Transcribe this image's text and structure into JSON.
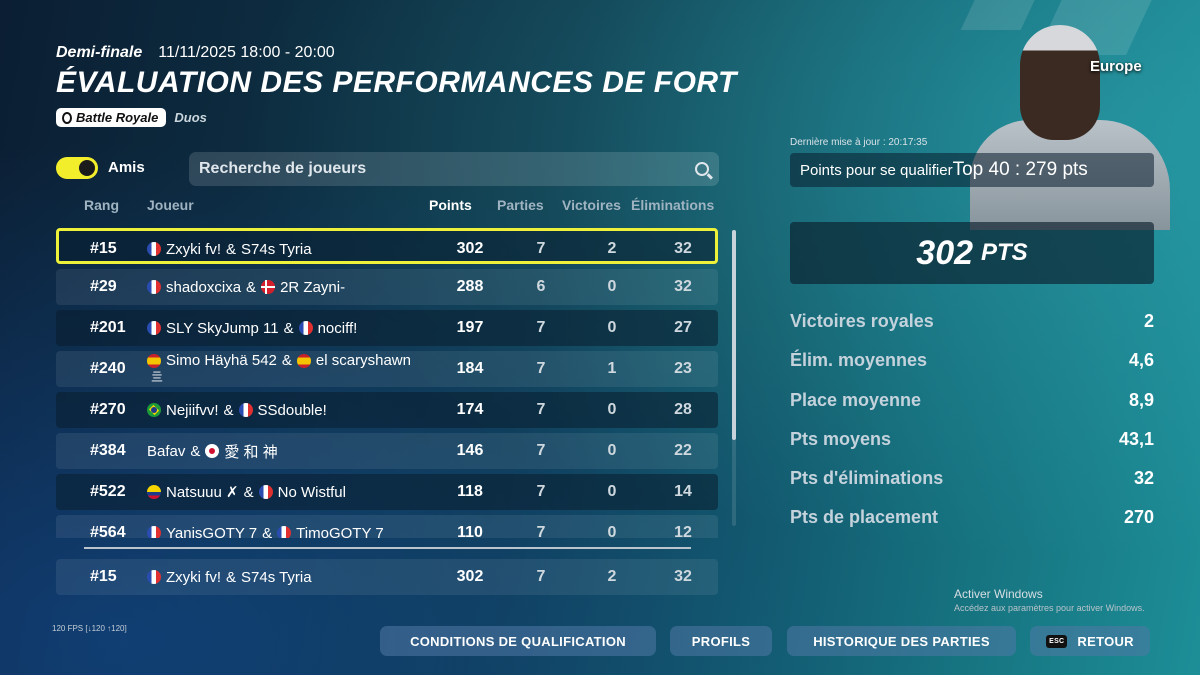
{
  "header": {
    "stage": "Demi-finale",
    "datetime": "11/11/2025 18:00 - 20:00",
    "title": "ÉVALUATION DES PERFORMANCES DE FORT",
    "mode": "Battle Royale",
    "team_size": "Duos",
    "region": "Europe"
  },
  "filters": {
    "friends_label": "Amis",
    "friends_on": true,
    "search_placeholder": "Recherche de joueurs"
  },
  "columns": {
    "rank": "Rang",
    "player": "Joueur",
    "points": "Points",
    "matches": "Parties",
    "wins": "Victoires",
    "elims": "Éliminations"
  },
  "rows": [
    {
      "rank": "#15",
      "p1_flag": "fr",
      "p1": "Zxyki fv!",
      "sep": "&",
      "p2_flag": "",
      "p2": "S74s Tyria",
      "points": "302",
      "matches": "7",
      "wins": "2",
      "elims": "32",
      "selected": true
    },
    {
      "rank": "#29",
      "p1_flag": "fr",
      "p1": "shadoxcixa",
      "sep": "&",
      "p2_flag": "dk",
      "p2": "2R Zayni-",
      "points": "288",
      "matches": "6",
      "wins": "0",
      "elims": "32"
    },
    {
      "rank": "#201",
      "p1_flag": "fr",
      "p1": "SLY SkyJump 11",
      "sep": "&",
      "p2_flag": "fr",
      "p2": "nociff!",
      "points": "197",
      "matches": "7",
      "wins": "0",
      "elims": "27"
    },
    {
      "rank": "#240",
      "p1_flag": "es",
      "p1": "Simo Häyhä 542",
      "sep": "&",
      "p2_flag": "es",
      "p2": "el scaryshawn",
      "extra": "亖",
      "points": "184",
      "matches": "7",
      "wins": "1",
      "elims": "23"
    },
    {
      "rank": "#270",
      "p1_flag": "br",
      "p1": "Nejiifvv!",
      "sep": "&",
      "p2_flag": "fr",
      "p2": "SSdouble!",
      "points": "174",
      "matches": "7",
      "wins": "0",
      "elims": "28"
    },
    {
      "rank": "#384",
      "p1_flag": "",
      "p1": "Bafav",
      "sep": "&",
      "p2_flag": "jp",
      "p2": "愛 和 神",
      "points": "146",
      "matches": "7",
      "wins": "0",
      "elims": "22"
    },
    {
      "rank": "#522",
      "p1_flag": "co",
      "p1": "Natsuuu ✗",
      "sep": "&",
      "p2_flag": "fr",
      "p2": "No Wistful",
      "points": "118",
      "matches": "7",
      "wins": "0",
      "elims": "14"
    },
    {
      "rank": "#564",
      "p1_flag": "fr",
      "p1": "YanisGOTY 7",
      "sep": "&",
      "p2_flag": "fr",
      "p2": "TimoGOTY 7",
      "points": "110",
      "matches": "7",
      "wins": "0",
      "elims": "12"
    }
  ],
  "pinned_row": {
    "rank": "#15",
    "p1_flag": "fr",
    "p1": "Zxyki fv!",
    "sep": "&",
    "p2": "S74s Tyria",
    "points": "302",
    "matches": "7",
    "wins": "2",
    "elims": "32"
  },
  "list_scroll": {
    "visible_fraction": 0.71,
    "position": 0.0
  },
  "summary": {
    "last_update": "Dernière mise à jour : 20:17:35",
    "qualify_label": "Points pour se qualifier",
    "qualify_value": "Top 40 : 279 pts",
    "total_points": "302",
    "total_unit": "PTS",
    "stats": [
      {
        "label": "Victoires royales",
        "value": "2"
      },
      {
        "label": "Élim. moyennes",
        "value": "4,6"
      },
      {
        "label": "Place moyenne",
        "value": "8,9"
      },
      {
        "label": "Pts moyens",
        "value": "43,1"
      },
      {
        "label": "Pts d'éliminations",
        "value": "32"
      },
      {
        "label": "Pts de placement",
        "value": "270"
      }
    ]
  },
  "windows_notice": {
    "line1": "Activer Windows",
    "line2": "Accédez aux paramètres pour activer Windows."
  },
  "fps": "120 FPS [↓120 ↑120]",
  "buttons": {
    "conditions": "CONDITIONS DE QUALIFICATION",
    "profiles": "PROFILS",
    "history": "HISTORIQUE DES PARTIES",
    "back_key": "ESC",
    "back": "RETOUR"
  },
  "colors": {
    "highlight": "#eef13a",
    "toggle": "#f2ee2c"
  }
}
